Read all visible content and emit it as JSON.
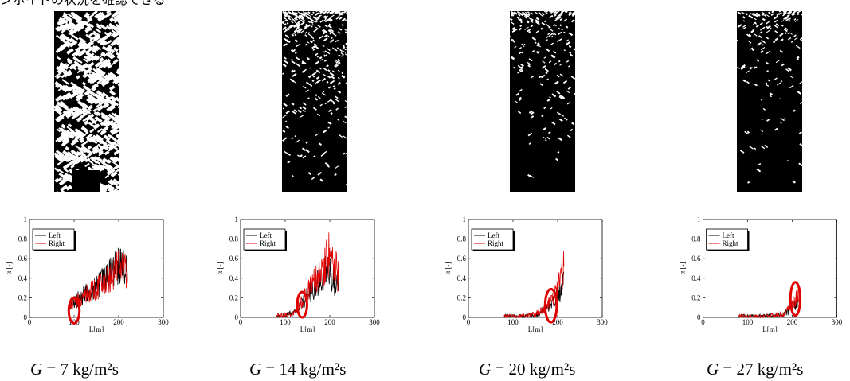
{
  "header_text": "ンボイドの状況を確認できる",
  "panels": [
    {
      "caption": {
        "symbol": "G",
        "rest": " = 7 kg/m²s"
      },
      "photo": {
        "white_fraction_top": 0.55,
        "white_fraction_bottom": 0.5
      },
      "chart_data": {
        "type": "line",
        "xlabel": "L[m]",
        "ylabel": "α [-]",
        "xlim": [
          0,
          300
        ],
        "ylim": [
          0,
          1
        ],
        "xticks": [
          "0",
          "100",
          "200",
          "300"
        ],
        "yticks": [
          "0",
          "0.2",
          "0.4",
          "0.6",
          "0.8",
          "1"
        ],
        "legend": {
          "position": "top-left",
          "entries": [
            "Left",
            "Right"
          ]
        },
        "series": [
          {
            "name": "Left",
            "color": "#000000",
            "x": [
              90,
              100,
              110,
              120,
              130,
              140,
              150,
              160,
              170,
              180,
              190,
              200,
              210,
              220
            ],
            "y": [
              0.12,
              0.17,
              0.19,
              0.22,
              0.27,
              0.28,
              0.3,
              0.35,
              0.38,
              0.44,
              0.5,
              0.53,
              0.57,
              0.4
            ]
          },
          {
            "name": "Right",
            "color": "#e00000",
            "x": [
              90,
              100,
              110,
              120,
              130,
              140,
              150,
              160,
              170,
              180,
              190,
              200,
              210,
              220
            ],
            "y": [
              0.1,
              0.15,
              0.18,
              0.2,
              0.24,
              0.27,
              0.29,
              0.33,
              0.36,
              0.42,
              0.47,
              0.5,
              0.54,
              0.42
            ]
          }
        ],
        "highlight": {
          "cx": 100,
          "cy": 0.07,
          "rx": 12,
          "ry": 0.13,
          "color": "#e00000"
        }
      }
    },
    {
      "caption": {
        "symbol": "G",
        "rest": " = 14 kg/m²s"
      },
      "photo": {
        "white_fraction_top": 0.5,
        "white_fraction_bottom": 0.06
      },
      "chart_data": {
        "type": "line",
        "xlabel": "L[m]",
        "ylabel": "α [-]",
        "xlim": [
          0,
          300
        ],
        "ylim": [
          0,
          1
        ],
        "xticks": [
          "0",
          "100",
          "200",
          "300"
        ],
        "yticks": [
          "0",
          "0.2",
          "0.4",
          "0.6",
          "0.8",
          "1"
        ],
        "legend": {
          "position": "top-left",
          "entries": [
            "Left",
            "Right"
          ]
        },
        "series": [
          {
            "name": "Left",
            "color": "#000000",
            "x": [
              80,
              100,
              120,
              130,
              140,
              150,
              160,
              170,
              180,
              190,
              200,
              210,
              220
            ],
            "y": [
              0.02,
              0.02,
              0.05,
              0.1,
              0.15,
              0.22,
              0.28,
              0.33,
              0.4,
              0.45,
              0.45,
              0.35,
              0.3
            ]
          },
          {
            "name": "Right",
            "color": "#e00000",
            "x": [
              80,
              100,
              120,
              130,
              140,
              150,
              160,
              170,
              180,
              190,
              200,
              210,
              220
            ],
            "y": [
              0.02,
              0.02,
              0.04,
              0.12,
              0.18,
              0.25,
              0.32,
              0.4,
              0.48,
              0.55,
              0.65,
              0.55,
              0.4
            ]
          }
        ],
        "highlight": {
          "cx": 138,
          "cy": 0.13,
          "rx": 11,
          "ry": 0.13,
          "color": "#e00000"
        }
      }
    },
    {
      "caption": {
        "symbol": "G",
        "rest": " = 20 kg/m²s"
      },
      "photo": {
        "white_fraction_top": 0.35,
        "white_fraction_bottom": 0.01
      },
      "chart_data": {
        "type": "line",
        "xlabel": "L[m]",
        "ylabel": "α [-]",
        "xlim": [
          0,
          300
        ],
        "ylim": [
          0,
          1
        ],
        "xticks": [
          "0",
          "100",
          "200",
          "300"
        ],
        "yticks": [
          "0",
          "0.2",
          "0.4",
          "0.6",
          "0.8",
          "1"
        ],
        "legend": {
          "position": "top-left",
          "entries": [
            "Left",
            "Right"
          ]
        },
        "series": [
          {
            "name": "Left",
            "color": "#000000",
            "x": [
              80,
              100,
              120,
              140,
              160,
              170,
              180,
              190,
              200,
              210,
              215
            ],
            "y": [
              0.01,
              0.01,
              0.01,
              0.02,
              0.04,
              0.08,
              0.12,
              0.16,
              0.22,
              0.3,
              0.35
            ]
          },
          {
            "name": "Right",
            "color": "#e00000",
            "x": [
              80,
              100,
              120,
              140,
              160,
              170,
              180,
              190,
              200,
              210,
              215
            ],
            "y": [
              0.01,
              0.01,
              0.01,
              0.02,
              0.05,
              0.09,
              0.14,
              0.2,
              0.3,
              0.45,
              0.52
            ]
          }
        ],
        "highlight": {
          "cx": 185,
          "cy": 0.12,
          "rx": 13,
          "ry": 0.17,
          "color": "#e00000"
        }
      }
    },
    {
      "caption": {
        "symbol": "G",
        "rest": " = 27 kg/m²s"
      },
      "photo": {
        "white_fraction_top": 0.25,
        "white_fraction_bottom": 0.01
      },
      "chart_data": {
        "type": "line",
        "xlabel": "L[m]",
        "ylabel": "α [-]",
        "xlim": [
          0,
          300
        ],
        "ylim": [
          0,
          1
        ],
        "xticks": [
          "0",
          "100",
          "200",
          "300"
        ],
        "yticks": [
          "0",
          "0.2",
          "0.4",
          "0.6",
          "0.8",
          "1"
        ],
        "legend": {
          "position": "top-left",
          "entries": [
            "Left",
            "Right"
          ]
        },
        "series": [
          {
            "name": "Left",
            "color": "#000000",
            "x": [
              80,
              100,
              120,
              140,
              160,
              180,
              190,
              200,
              210,
              215
            ],
            "y": [
              0.01,
              0.01,
              0.01,
              0.01,
              0.02,
              0.03,
              0.06,
              0.1,
              0.15,
              0.18
            ]
          },
          {
            "name": "Right",
            "color": "#e00000",
            "x": [
              80,
              100,
              120,
              140,
              160,
              180,
              190,
              200,
              210,
              215
            ],
            "y": [
              0.01,
              0.01,
              0.01,
              0.01,
              0.02,
              0.04,
              0.08,
              0.13,
              0.2,
              0.25
            ]
          }
        ],
        "highlight": {
          "cx": 207,
          "cy": 0.19,
          "rx": 11,
          "ry": 0.17,
          "color": "#e00000"
        }
      }
    }
  ]
}
